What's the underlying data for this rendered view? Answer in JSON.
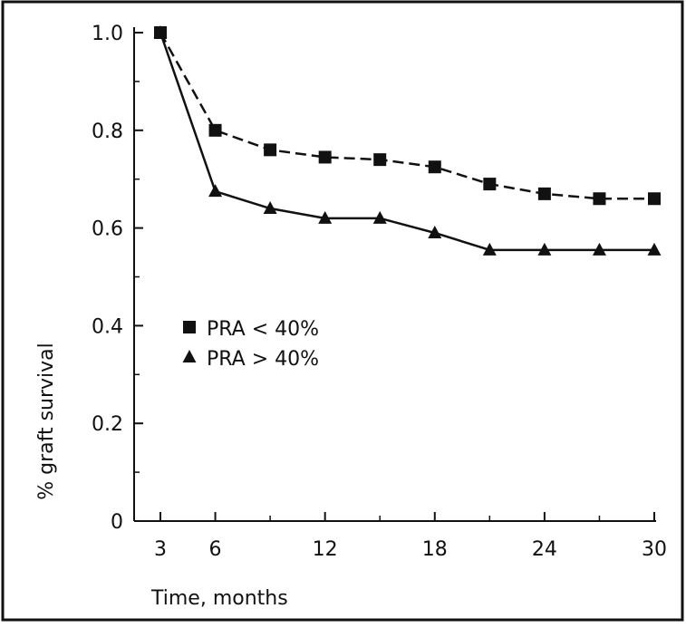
{
  "chart_data": {
    "type": "line",
    "xlabel": "Time, months",
    "ylabel": "% graft survival",
    "xlim": [
      3,
      30
    ],
    "ylim": [
      0,
      1.0
    ],
    "x_tick_labels": [
      {
        "value": 3,
        "label": "3"
      },
      {
        "value": 6,
        "label": "6"
      },
      {
        "value": 12,
        "label": "12"
      },
      {
        "value": 18,
        "label": "18"
      },
      {
        "value": 24,
        "label": "24"
      },
      {
        "value": 30,
        "label": "30"
      }
    ],
    "x_minor_ticks": [
      9,
      15,
      21,
      27
    ],
    "y_tick_labels": [
      {
        "value": 0,
        "label": "0"
      },
      {
        "value": 0.2,
        "label": "0.2"
      },
      {
        "value": 0.4,
        "label": "0.4"
      },
      {
        "value": 0.6,
        "label": "0.6"
      },
      {
        "value": 0.8,
        "label": "0.8"
      },
      {
        "value": 1.0,
        "label": "1.0"
      }
    ],
    "y_minor_ticks": [
      0.1,
      0.3,
      0.5,
      0.7,
      0.9
    ],
    "grid": false,
    "legend_position": "middle-left",
    "series": [
      {
        "name": "PRA < 40%",
        "marker": "square",
        "line_style": "dashed",
        "color": "#111111",
        "points": [
          {
            "x": 3,
            "y": 1.0
          },
          {
            "x": 6,
            "y": 0.8
          },
          {
            "x": 9,
            "y": 0.76
          },
          {
            "x": 12,
            "y": 0.745
          },
          {
            "x": 15,
            "y": 0.74
          },
          {
            "x": 18,
            "y": 0.725
          },
          {
            "x": 21,
            "y": 0.69
          },
          {
            "x": 24,
            "y": 0.67
          },
          {
            "x": 27,
            "y": 0.66
          },
          {
            "x": 30,
            "y": 0.66
          }
        ]
      },
      {
        "name": "PRA > 40%",
        "marker": "triangle",
        "line_style": "solid",
        "color": "#111111",
        "points": [
          {
            "x": 3,
            "y": 1.0
          },
          {
            "x": 6,
            "y": 0.675
          },
          {
            "x": 9,
            "y": 0.64
          },
          {
            "x": 12,
            "y": 0.62
          },
          {
            "x": 15,
            "y": 0.62
          },
          {
            "x": 18,
            "y": 0.59
          },
          {
            "x": 21,
            "y": 0.555
          },
          {
            "x": 24,
            "y": 0.555
          },
          {
            "x": 27,
            "y": 0.555
          },
          {
            "x": 30,
            "y": 0.555
          }
        ]
      }
    ]
  }
}
